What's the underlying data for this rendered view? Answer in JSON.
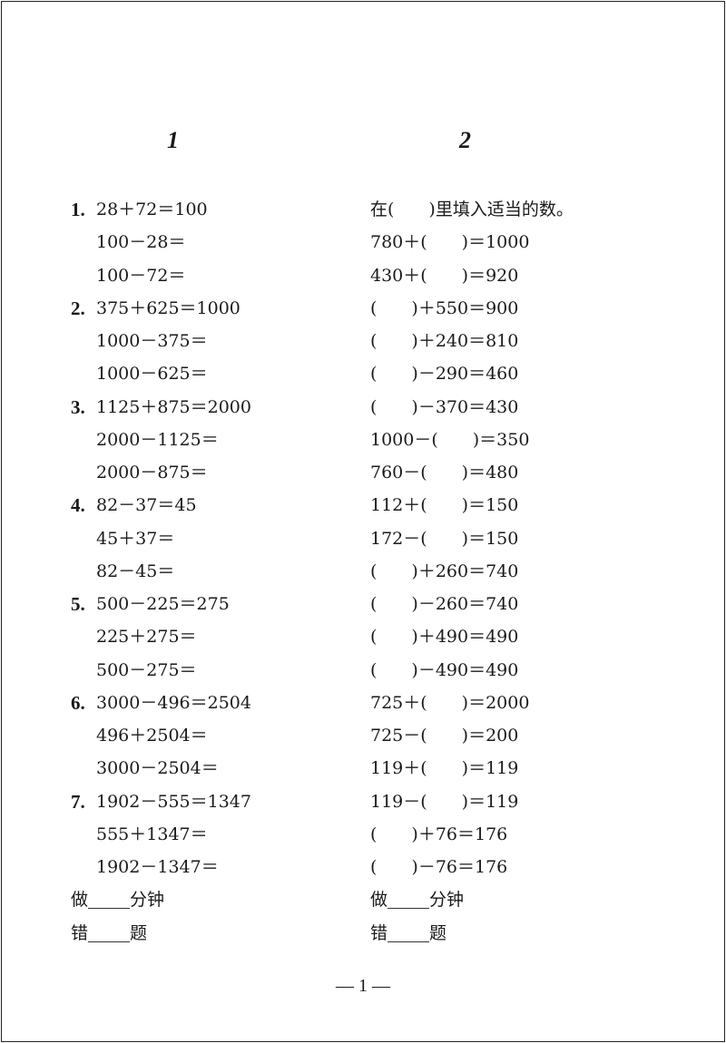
{
  "section1": {
    "title": "1",
    "problems": [
      {
        "number": "1.",
        "lines": [
          "28＋72＝100",
          "100－28＝",
          "100－72＝"
        ]
      },
      {
        "number": "2.",
        "lines": [
          "375＋625＝1000",
          "1000－375＝",
          "1000－625＝"
        ]
      },
      {
        "number": "3.",
        "lines": [
          "1125＋875＝2000",
          "2000－1125＝",
          "2000－875＝"
        ]
      },
      {
        "number": "4.",
        "lines": [
          "82－37＝45",
          "45＋37＝",
          "82－45＝"
        ]
      },
      {
        "number": "5.",
        "lines": [
          "500－225＝275",
          "225＋275＝",
          "500－275＝"
        ]
      },
      {
        "number": "6.",
        "lines": [
          "3000－496＝2504",
          "496＋2504＝",
          "3000－2504＝"
        ]
      },
      {
        "number": "7.",
        "lines": [
          "1902－555＝1347",
          "555＋1347＝",
          "1902－1347＝"
        ]
      }
    ],
    "time_prefix": "做",
    "time_suffix": "分钟",
    "errors_prefix": "错",
    "errors_suffix": "题"
  },
  "section2": {
    "title": "2",
    "instruction": "在(　　)里填入适当的数。",
    "lines": [
      "780＋(　　)＝1000",
      "430＋(　　)＝920",
      "(　　)＋550＝900",
      "(　　)＋240＝810",
      "(　　)－290＝460",
      "(　　)－370＝430",
      "1000－(　　)＝350",
      "760－(　　)＝480",
      "112＋(　　)＝150",
      "172－(　　)＝150",
      "(　　)＋260＝740",
      "(　　)－260＝740",
      "(　　)＋490＝490",
      "(　　)－490＝490",
      "725＋(　　)＝2000",
      "725－(　　)＝200",
      "119＋(　　)＝119",
      "119－(　　)＝119",
      "(　　)＋76＝176",
      "(　　)－76＝176"
    ],
    "time_prefix": "做",
    "time_suffix": "分钟",
    "errors_prefix": "错",
    "errors_suffix": "题"
  },
  "footer": {
    "page_number": "— 1 —"
  }
}
